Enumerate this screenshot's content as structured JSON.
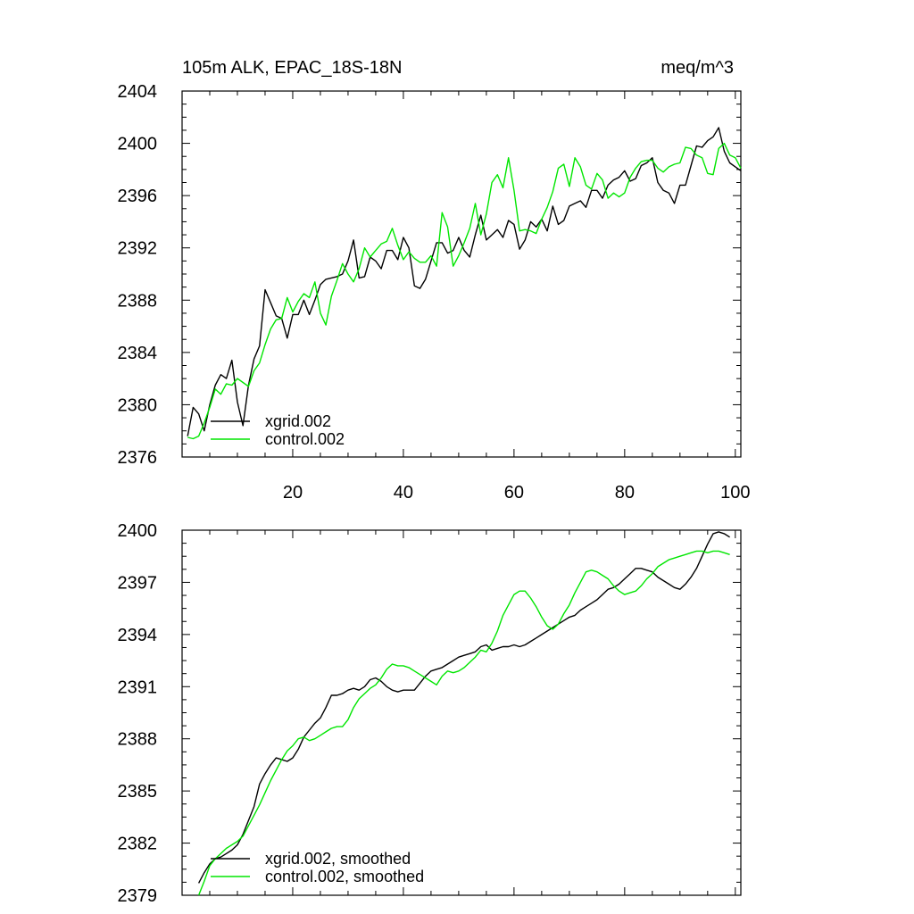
{
  "figure": {
    "title_left": "105m ALK, EPAC_18S-18N",
    "title_right": "meq/m^3"
  },
  "colors": {
    "series_a": "#000000",
    "series_b": "#00e600",
    "axis": "#000000"
  },
  "chart_data": [
    {
      "type": "line",
      "title": "105m ALK, EPAC_18S-18N",
      "units": "meq/m^3",
      "xlabel": "",
      "ylabel": "",
      "xlim": [
        0,
        101
      ],
      "ylim": [
        2376,
        2404
      ],
      "xticks": [
        20,
        40,
        60,
        80,
        100
      ],
      "xtick_labels": [
        "20",
        "40",
        "60",
        "80",
        "100"
      ],
      "yticks": [
        2376,
        2380,
        2384,
        2388,
        2392,
        2396,
        2400,
        2404
      ],
      "ytick_labels": [
        "2376",
        "2380",
        "2384",
        "2388",
        "2392",
        "2396",
        "2400",
        "2404"
      ],
      "legend_position": "bottom-left",
      "series": [
        {
          "name": "xgrid.002",
          "color": "#000000",
          "x": [
            1,
            2,
            3,
            4,
            5,
            6,
            7,
            8,
            9,
            10,
            11,
            12,
            13,
            14,
            15,
            16,
            17,
            18,
            19,
            20,
            21,
            22,
            23,
            24,
            25,
            26,
            27,
            28,
            29,
            30,
            31,
            32,
            33,
            34,
            35,
            36,
            37,
            38,
            39,
            40,
            41,
            42,
            43,
            44,
            45,
            46,
            47,
            48,
            49,
            50,
            51,
            52,
            53,
            54,
            55,
            56,
            57,
            58,
            59,
            60,
            61,
            62,
            63,
            64,
            65,
            66,
            67,
            68,
            69,
            70,
            71,
            72,
            73,
            74,
            75,
            76,
            77,
            78,
            79,
            80,
            81,
            82,
            83,
            84,
            85,
            86,
            87,
            88,
            89,
            90,
            91,
            92,
            93,
            94,
            95,
            96,
            97,
            98,
            99,
            100,
            101
          ],
          "values": [
            2377.6,
            2379.8,
            2379.3,
            2378.0,
            2380.0,
            2381.5,
            2382.3,
            2382.0,
            2383.4,
            2380.2,
            2378.4,
            2381.5,
            2383.5,
            2384.5,
            2388.8,
            2387.8,
            2386.8,
            2386.6,
            2385.1,
            2386.9,
            2386.9,
            2388.0,
            2386.9,
            2388.0,
            2389.2,
            2389.6,
            2389.7,
            2389.8,
            2390.0,
            2391.0,
            2392.6,
            2389.7,
            2389.8,
            2391.3,
            2391.0,
            2390.4,
            2391.8,
            2391.8,
            2391.1,
            2392.8,
            2392.0,
            2389.1,
            2388.9,
            2389.6,
            2391.0,
            2392.4,
            2392.4,
            2391.6,
            2391.8,
            2392.8,
            2391.8,
            2391.3,
            2393.0,
            2394.5,
            2392.6,
            2393.0,
            2393.4,
            2392.8,
            2394.1,
            2393.8,
            2391.9,
            2392.6,
            2394.0,
            2393.6,
            2394.2,
            2393.3,
            2395.2,
            2393.8,
            2394.1,
            2395.2,
            2395.4,
            2395.6,
            2395.1,
            2396.4,
            2396.4,
            2395.8,
            2396.8,
            2397.2,
            2397.4,
            2397.9,
            2397.1,
            2397.3,
            2398.3,
            2398.5,
            2398.9,
            2397.0,
            2396.4,
            2396.2,
            2395.4,
            2396.8,
            2396.8,
            2398.3,
            2399.8,
            2399.7,
            2400.2,
            2400.5,
            2401.2,
            2399.4,
            2398.5,
            2398.2,
            2397.9
          ]
        },
        {
          "name": "control.002",
          "color": "#00e600",
          "x": [
            1,
            2,
            3,
            4,
            5,
            6,
            7,
            8,
            9,
            10,
            11,
            12,
            13,
            14,
            15,
            16,
            17,
            18,
            19,
            20,
            21,
            22,
            23,
            24,
            25,
            26,
            27,
            28,
            29,
            30,
            31,
            32,
            33,
            34,
            35,
            36,
            37,
            38,
            39,
            40,
            41,
            42,
            43,
            44,
            45,
            46,
            47,
            48,
            49,
            50,
            51,
            52,
            53,
            54,
            55,
            56,
            57,
            58,
            59,
            60,
            61,
            62,
            63,
            64,
            65,
            66,
            67,
            68,
            69,
            70,
            71,
            72,
            73,
            74,
            75,
            76,
            77,
            78,
            79,
            80,
            81,
            82,
            83,
            84,
            85,
            86,
            87,
            88,
            89,
            90,
            91,
            92,
            93,
            94,
            95,
            96,
            97,
            98,
            99,
            100,
            101
          ],
          "values": [
            2377.5,
            2377.4,
            2377.6,
            2378.6,
            2379.8,
            2381.2,
            2380.8,
            2381.6,
            2381.5,
            2382.0,
            2381.7,
            2381.4,
            2382.6,
            2383.2,
            2384.6,
            2385.8,
            2386.5,
            2386.6,
            2388.2,
            2387.1,
            2387.9,
            2388.5,
            2388.2,
            2389.4,
            2387.0,
            2386.1,
            2388.3,
            2389.5,
            2390.8,
            2390.0,
            2389.4,
            2390.4,
            2392.0,
            2391.3,
            2391.8,
            2392.3,
            2392.5,
            2393.5,
            2392.2,
            2391.1,
            2391.7,
            2391.2,
            2390.9,
            2390.9,
            2391.4,
            2390.6,
            2394.7,
            2393.6,
            2390.6,
            2391.4,
            2392.4,
            2393.5,
            2395.4,
            2393.0,
            2394.6,
            2397.0,
            2397.6,
            2396.6,
            2398.9,
            2396.4,
            2393.3,
            2393.4,
            2393.3,
            2393.1,
            2394.2,
            2395.1,
            2396.3,
            2398.1,
            2398.4,
            2396.7,
            2398.9,
            2398.2,
            2396.8,
            2396.5,
            2397.7,
            2397.2,
            2395.8,
            2396.2,
            2395.9,
            2396.2,
            2397.4,
            2398.1,
            2398.6,
            2398.7,
            2398.7,
            2398.1,
            2397.8,
            2398.2,
            2398.4,
            2398.5,
            2399.7,
            2399.6,
            2399.1,
            2398.9,
            2397.7,
            2397.6,
            2399.6,
            2400.0,
            2399.1,
            2398.9,
            2398.1
          ]
        }
      ]
    },
    {
      "type": "line",
      "title": "",
      "xlabel": "",
      "ylabel": "",
      "xlim": [
        0,
        101
      ],
      "ylim": [
        2379,
        2400
      ],
      "xticks": [
        20,
        40,
        60,
        80,
        100
      ],
      "xtick_labels": [],
      "yticks": [
        2379,
        2382,
        2385,
        2388,
        2391,
        2394,
        2397,
        2400
      ],
      "ytick_labels": [
        "2379",
        "2382",
        "2385",
        "2388",
        "2391",
        "2394",
        "2397",
        "2400"
      ],
      "legend_position": "bottom-left",
      "series": [
        {
          "name": "xgrid.002, smoothed",
          "color": "#000000",
          "x": [
            3,
            4,
            5,
            6,
            7,
            8,
            9,
            10,
            11,
            12,
            13,
            14,
            15,
            16,
            17,
            18,
            19,
            20,
            21,
            22,
            23,
            24,
            25,
            26,
            27,
            28,
            29,
            30,
            31,
            32,
            33,
            34,
            35,
            36,
            37,
            38,
            39,
            40,
            41,
            42,
            43,
            44,
            45,
            46,
            47,
            48,
            49,
            50,
            51,
            52,
            53,
            54,
            55,
            56,
            57,
            58,
            59,
            60,
            61,
            62,
            63,
            64,
            65,
            66,
            67,
            68,
            69,
            70,
            71,
            72,
            73,
            74,
            75,
            76,
            77,
            78,
            79,
            80,
            81,
            82,
            83,
            84,
            85,
            86,
            87,
            88,
            89,
            90,
            91,
            92,
            93,
            94,
            95,
            96,
            97,
            98,
            99
          ],
          "values": [
            2379.7,
            2380.3,
            2380.8,
            2381.1,
            2381.2,
            2381.4,
            2381.6,
            2381.9,
            2382.5,
            2383.3,
            2384.1,
            2385.4,
            2386.0,
            2386.5,
            2386.9,
            2386.8,
            2386.7,
            2386.9,
            2387.4,
            2388.1,
            2388.5,
            2388.9,
            2389.2,
            2389.8,
            2390.5,
            2390.5,
            2390.6,
            2390.8,
            2390.9,
            2390.8,
            2391.0,
            2391.4,
            2391.5,
            2391.3,
            2391.0,
            2390.8,
            2390.7,
            2390.8,
            2390.8,
            2390.8,
            2391.2,
            2391.6,
            2391.9,
            2392.0,
            2392.1,
            2392.3,
            2392.5,
            2392.7,
            2392.8,
            2392.9,
            2393.0,
            2393.3,
            2393.4,
            2393.1,
            2393.2,
            2393.3,
            2393.3,
            2393.4,
            2393.3,
            2393.4,
            2393.6,
            2393.8,
            2394.0,
            2394.2,
            2394.4,
            2394.6,
            2394.8,
            2395.0,
            2395.1,
            2395.4,
            2395.6,
            2395.8,
            2396.0,
            2396.3,
            2396.6,
            2396.7,
            2396.9,
            2397.2,
            2397.5,
            2397.8,
            2397.8,
            2397.7,
            2397.6,
            2397.3,
            2397.1,
            2396.9,
            2396.7,
            2396.6,
            2396.9,
            2397.3,
            2397.8,
            2398.5,
            2399.2,
            2399.8,
            2399.9,
            2399.8,
            2399.6
          ]
        },
        {
          "name": "control.002, smoothed",
          "color": "#00e600",
          "x": [
            3,
            4,
            5,
            6,
            7,
            8,
            9,
            10,
            11,
            12,
            13,
            14,
            15,
            16,
            17,
            18,
            19,
            20,
            21,
            22,
            23,
            24,
            25,
            26,
            27,
            28,
            29,
            30,
            31,
            32,
            33,
            34,
            35,
            36,
            37,
            38,
            39,
            40,
            41,
            42,
            43,
            44,
            45,
            46,
            47,
            48,
            49,
            50,
            51,
            52,
            53,
            54,
            55,
            56,
            57,
            58,
            59,
            60,
            61,
            62,
            63,
            64,
            65,
            66,
            67,
            68,
            69,
            70,
            71,
            72,
            73,
            74,
            75,
            76,
            77,
            78,
            79,
            80,
            81,
            82,
            83,
            84,
            85,
            86,
            87,
            88,
            89,
            90,
            91,
            92,
            93,
            94,
            95,
            96,
            97,
            98,
            99
          ],
          "values": [
            2379.0,
            2379.8,
            2380.7,
            2381.1,
            2381.4,
            2381.7,
            2381.9,
            2382.1,
            2382.4,
            2383.0,
            2383.6,
            2384.2,
            2384.9,
            2385.6,
            2386.2,
            2386.8,
            2387.3,
            2387.6,
            2388.0,
            2388.1,
            2387.9,
            2388.0,
            2388.2,
            2388.4,
            2388.6,
            2388.7,
            2388.7,
            2389.1,
            2389.8,
            2390.3,
            2390.6,
            2390.9,
            2391.1,
            2391.5,
            2392.0,
            2392.3,
            2392.2,
            2392.2,
            2392.1,
            2391.9,
            2391.7,
            2391.5,
            2391.3,
            2391.1,
            2391.6,
            2391.9,
            2391.8,
            2391.9,
            2392.1,
            2392.4,
            2392.7,
            2393.1,
            2393.0,
            2393.5,
            2394.2,
            2395.1,
            2395.7,
            2396.3,
            2396.5,
            2396.5,
            2396.1,
            2395.6,
            2395.0,
            2394.5,
            2394.3,
            2394.6,
            2395.2,
            2395.7,
            2396.4,
            2397.0,
            2397.6,
            2397.7,
            2397.6,
            2397.4,
            2397.2,
            2396.8,
            2396.5,
            2396.3,
            2396.4,
            2396.5,
            2396.8,
            2397.2,
            2397.5,
            2397.9,
            2398.1,
            2398.3,
            2398.4,
            2398.5,
            2398.6,
            2398.7,
            2398.8,
            2398.8,
            2398.7,
            2398.8,
            2398.8,
            2398.7,
            2398.6
          ]
        }
      ]
    }
  ]
}
